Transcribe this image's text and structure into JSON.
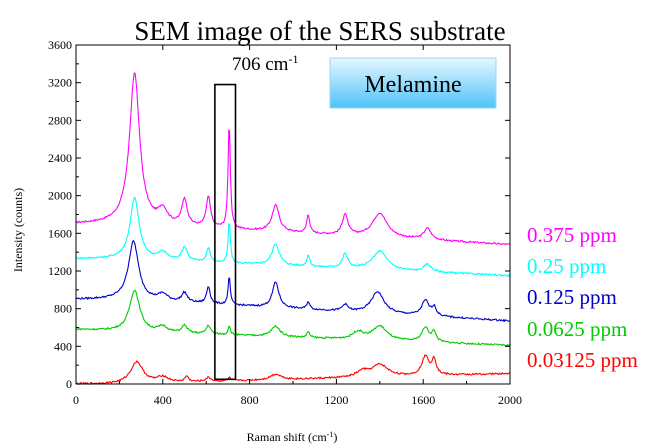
{
  "chart_data": {
    "type": "line",
    "title": "SEM image of the SERS substrate",
    "xlabel": "Raman shift (cm-1)",
    "xlabel_main": "Raman shift (cm",
    "xlabel_sup": "-1",
    "xlabel_close": ")",
    "ylabel": "Intensity (counts)",
    "xlim": [
      0,
      2000
    ],
    "ylim": [
      0,
      3600
    ],
    "x_ticks": [
      0,
      400,
      800,
      1200,
      1600,
      2000
    ],
    "y_ticks": [
      0,
      400,
      800,
      1200,
      1600,
      2000,
      2400,
      2800,
      3200,
      3600
    ],
    "grid": false,
    "legend": "right side, colored text labels aligned with curves",
    "inset_label": "Melamine",
    "annotation": {
      "text_main": "706 cm",
      "text_sup": "-1",
      "box_x": [
        640,
        735
      ],
      "box_y": [
        50,
        3180
      ]
    },
    "series": [
      {
        "name": "0.375 ppm",
        "color": "#ff00ff",
        "baseline_start": 1700,
        "baseline_end": 1480,
        "start_y": 1700,
        "peaks": [
          [
            270,
            1600,
            28
          ],
          [
            400,
            150,
            25
          ],
          [
            500,
            280,
            15
          ],
          [
            610,
            320,
            12
          ],
          [
            706,
            1150,
            6
          ],
          [
            920,
            280,
            20
          ],
          [
            1070,
            200,
            8
          ],
          [
            1240,
            220,
            15
          ],
          [
            1400,
            260,
            40
          ],
          [
            1620,
            120,
            20
          ]
        ]
      },
      {
        "name": "0.25 ppm",
        "color": "#00ffff",
        "baseline_start": 1330,
        "baseline_end": 1150,
        "start_y": 1330,
        "peaks": [
          [
            270,
            650,
            25
          ],
          [
            400,
            80,
            25
          ],
          [
            500,
            150,
            15
          ],
          [
            610,
            150,
            10
          ],
          [
            706,
            450,
            6
          ],
          [
            920,
            230,
            20
          ],
          [
            1070,
            120,
            8
          ],
          [
            1240,
            150,
            15
          ],
          [
            1400,
            200,
            40
          ],
          [
            1620,
            80,
            20
          ]
        ]
      },
      {
        "name": "0.125 ppm",
        "color": "#0000cc",
        "baseline_start": 900,
        "baseline_end": 670,
        "start_y": 900,
        "peaks": [
          [
            265,
            620,
            28
          ],
          [
            400,
            70,
            25
          ],
          [
            500,
            100,
            15
          ],
          [
            610,
            180,
            10
          ],
          [
            706,
            300,
            6
          ],
          [
            920,
            270,
            18
          ],
          [
            1070,
            80,
            8
          ],
          [
            1240,
            70,
            15
          ],
          [
            1390,
            230,
            35
          ],
          [
            1610,
            160,
            20
          ],
          [
            1650,
            90,
            12
          ]
        ]
      },
      {
        "name": "0.0625 ppm",
        "color": "#00cc00",
        "baseline_start": 560,
        "baseline_end": 410,
        "start_y": 580,
        "peaks": [
          [
            270,
            440,
            28
          ],
          [
            400,
            60,
            25
          ],
          [
            500,
            80,
            15
          ],
          [
            610,
            90,
            12
          ],
          [
            706,
            100,
            6
          ],
          [
            920,
            110,
            25
          ],
          [
            1070,
            60,
            8
          ],
          [
            1300,
            80,
            30
          ],
          [
            1400,
            150,
            40
          ],
          [
            1610,
            150,
            20
          ],
          [
            1650,
            100,
            12
          ]
        ]
      },
      {
        "name": "0.03125 ppm",
        "color": "#ff0000",
        "baseline_start": 0,
        "baseline_end": 110,
        "start_y": 0,
        "peaks": [
          [
            280,
            230,
            35
          ],
          [
            400,
            60,
            30
          ],
          [
            510,
            60,
            10
          ],
          [
            610,
            40,
            15
          ],
          [
            706,
            40,
            6
          ],
          [
            920,
            60,
            30
          ],
          [
            1320,
            60,
            30
          ],
          [
            1400,
            130,
            45
          ],
          [
            1610,
            200,
            20
          ],
          [
            1650,
            160,
            12
          ]
        ]
      }
    ]
  }
}
